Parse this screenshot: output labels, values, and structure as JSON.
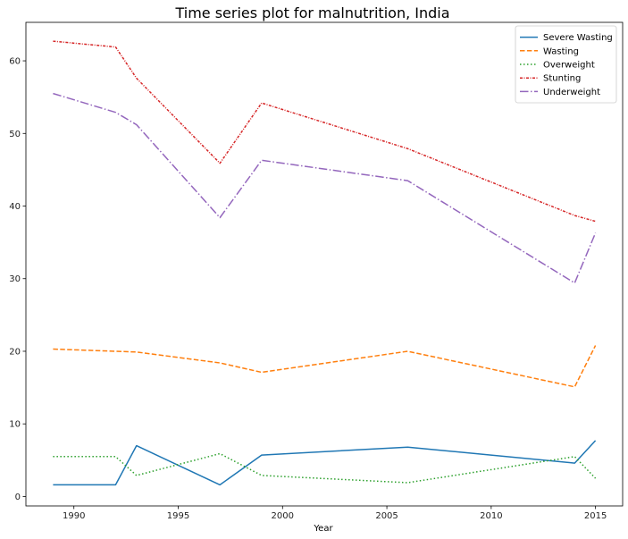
{
  "chart_data": {
    "type": "line",
    "title": "Time series plot for malnutrition, India",
    "xlabel": "Year",
    "ylabel": "",
    "xlim": [
      1987.7,
      2016.3
    ],
    "ylim": [
      -1.3,
      65.3
    ],
    "xticks": [
      1990,
      1995,
      2000,
      2005,
      2010,
      2015
    ],
    "yticks": [
      0,
      10,
      20,
      30,
      40,
      50,
      60
    ],
    "grid": false,
    "legend_position": "top-right",
    "series": [
      {
        "name": "Severe Wasting",
        "color": "#1f77b4",
        "dash": "solid",
        "x": [
          1989,
          1992,
          1993,
          1997,
          1999,
          2006,
          2014,
          2015
        ],
        "y": [
          1.6,
          1.6,
          7.0,
          1.6,
          5.7,
          6.8,
          4.6,
          7.7
        ]
      },
      {
        "name": "Wasting",
        "color": "#ff7f0e",
        "dash": "dashed",
        "x": [
          1989,
          1992,
          1993,
          1997,
          1999,
          2006,
          2014,
          2015
        ],
        "y": [
          20.3,
          20.0,
          19.9,
          18.4,
          17.1,
          20.0,
          15.1,
          20.8
        ]
      },
      {
        "name": "Overweight",
        "color": "#2ca02c",
        "dash": "dotted",
        "x": [
          1989,
          1992,
          1993,
          1997,
          1999,
          2006,
          2014,
          2015
        ],
        "y": [
          5.5,
          5.5,
          2.9,
          5.9,
          2.9,
          1.9,
          5.5,
          2.5
        ]
      },
      {
        "name": "Stunting",
        "color": "#d62728",
        "dash": "dashdot-dense",
        "x": [
          1989,
          1992,
          1993,
          1997,
          1999,
          2006,
          2014,
          2015
        ],
        "y": [
          62.7,
          61.9,
          57.6,
          45.9,
          54.2,
          47.9,
          38.7,
          37.9
        ]
      },
      {
        "name": "Underweight",
        "color": "#9467bd",
        "dash": "dashdot",
        "x": [
          1989,
          1992,
          1993,
          1997,
          1999,
          2006,
          2014,
          2015
        ],
        "y": [
          55.5,
          52.9,
          51.2,
          38.4,
          46.3,
          43.5,
          29.4,
          36.3
        ]
      }
    ]
  }
}
